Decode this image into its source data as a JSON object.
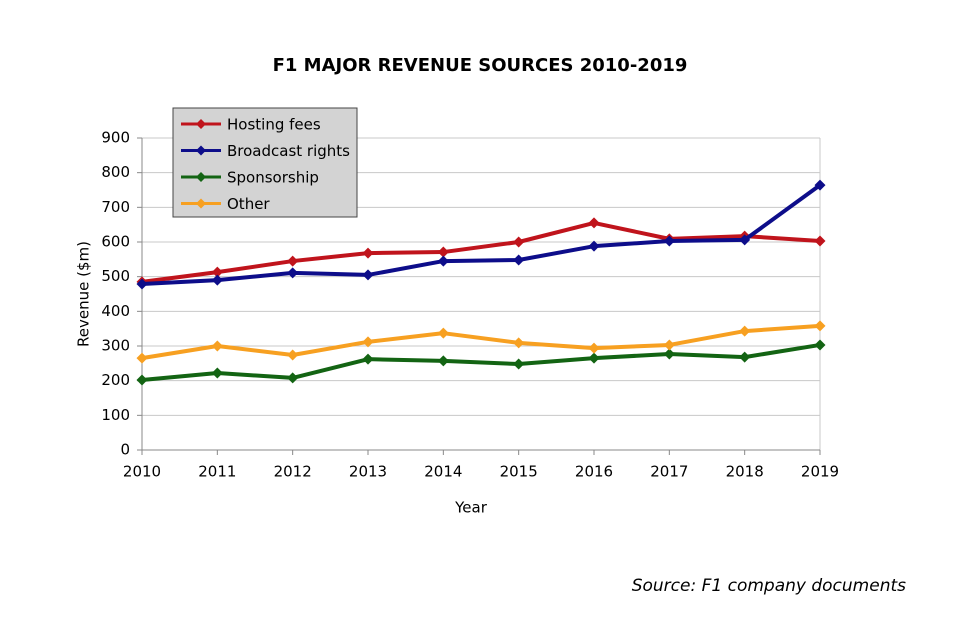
{
  "chart_data": {
    "type": "line",
    "title": "F1 MAJOR REVENUE SOURCES 2010-2019",
    "x_label": "Year",
    "y_label": "Revenue ($m)",
    "source": "Source: F1 company documents",
    "x": [
      2010,
      2011,
      2012,
      2013,
      2014,
      2015,
      2016,
      2017,
      2018,
      2019
    ],
    "xlim": [
      2010,
      2019
    ],
    "xticks": [
      2010,
      2011,
      2012,
      2013,
      2014,
      2015,
      2016,
      2017,
      2018,
      2019
    ],
    "ylim": [
      0,
      900
    ],
    "yticks": [
      0,
      100,
      200,
      300,
      400,
      500,
      600,
      700,
      800,
      900
    ],
    "grid": true,
    "legend": "upper-left",
    "series": [
      {
        "name": "Hosting fees",
        "color": "#c0141c",
        "values": [
          485,
          513,
          545,
          568,
          571,
          600,
          655,
          609,
          617,
          603
        ]
      },
      {
        "name": "Broadcast rights",
        "color": "#0d0d8a",
        "values": [
          479,
          490,
          511,
          505,
          545,
          548,
          588,
          603,
          606,
          764
        ]
      },
      {
        "name": "Sponsorship",
        "color": "#136413",
        "values": [
          202,
          222,
          208,
          262,
          257,
          248,
          265,
          277,
          268,
          303
        ]
      },
      {
        "name": "Other",
        "color": "#f7a021",
        "values": [
          265,
          300,
          274,
          312,
          337,
          309,
          294,
          303,
          343,
          358
        ]
      }
    ]
  }
}
